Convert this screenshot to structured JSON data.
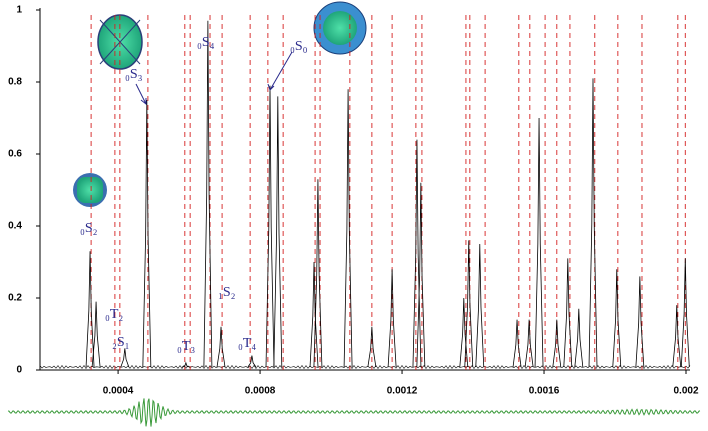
{
  "chart_data": {
    "type": "spectrum",
    "x": [
      0.000321,
      0.000338,
      0.000419,
      0.000481,
      0.000591,
      0.000653,
      0.00069,
      0.000777,
      0.000828,
      0.00085,
      0.000952,
      0.000963,
      0.001048,
      0.001115,
      0.001172,
      0.001242,
      0.001253,
      0.001374,
      0.001388,
      0.001419,
      0.001524,
      0.001558,
      0.001586,
      0.001636,
      0.001667,
      0.001698,
      0.001738,
      0.001805,
      0.00187,
      0.001974,
      0.001998
    ],
    "values": [
      0.33,
      0.19,
      0.06,
      0.75,
      0.02,
      0.97,
      0.12,
      0.04,
      0.79,
      0.76,
      0.3,
      0.53,
      0.78,
      0.12,
      0.28,
      0.64,
      0.52,
      0.2,
      0.36,
      0.35,
      0.14,
      0.14,
      0.7,
      0.14,
      0.31,
      0.17,
      0.81,
      0.28,
      0.26,
      0.18,
      0.31
    ],
    "color": "#000000",
    "reference_x": [
      0.000324,
      0.000391,
      0.000405,
      0.000484,
      0.000588,
      0.000603,
      0.000659,
      0.000693,
      0.000772,
      0.000822,
      0.000865,
      0.000955,
      0.000969,
      0.001053,
      0.001115,
      0.001172,
      0.001239,
      0.001256,
      0.00138,
      0.001391,
      0.001434,
      0.001529,
      0.00156,
      0.001603,
      0.001636,
      0.001673,
      0.001743,
      0.001808,
      0.001876,
      0.001977,
      0.001998
    ],
    "reference_color": "#d42020",
    "xlim": [
      0.00018,
      0.002
    ],
    "xticks": [
      0.0004,
      0.0008,
      0.0012,
      0.0016,
      0.002
    ],
    "ylim": [
      0,
      1
    ],
    "yticks": [
      0,
      0.2,
      0.4,
      0.6,
      0.8,
      1
    ],
    "annotations": [
      "₀S₂",
      "₀T₂",
      "₂S₁",
      "₀S₃",
      "₀S₄",
      "₀S₀",
      "₀T₃",
      "₁S₂",
      "₀T₄"
    ]
  }
}
